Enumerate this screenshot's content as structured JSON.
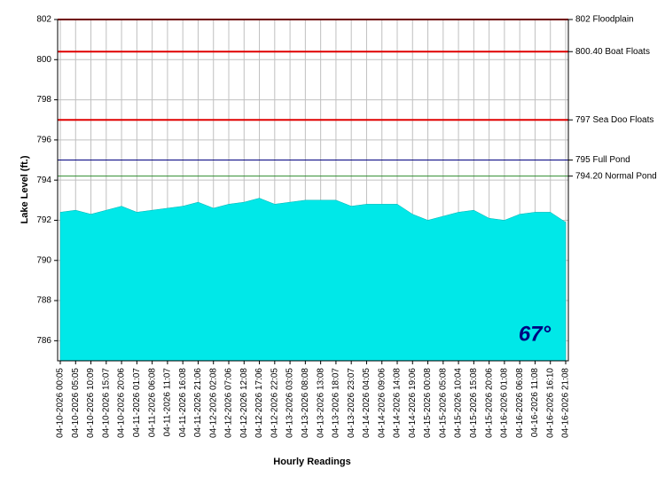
{
  "chart_data": {
    "type": "area",
    "y_label": "Lake Level (ft.)",
    "x_label": "Hourly Readings",
    "categories": [
      "04-10-2026 00:05",
      "04-10-2026 05:05",
      "04-10-2026 10:09",
      "04-10-2026 15:07",
      "04-10-2026 20:06",
      "04-11-2026 01:07",
      "04-11-2026 06:08",
      "04-11-2026 11:07",
      "04-11-2026 16:08",
      "04-11-2026 21:06",
      "04-12-2026 02:08",
      "04-12-2026 07:06",
      "04-12-2026 12:08",
      "04-12-2026 17:06",
      "04-12-2026 22:05",
      "04-13-2026 03:05",
      "04-13-2026 08:08",
      "04-13-2026 13:08",
      "04-13-2026 18:07",
      "04-13-2026 23:07",
      "04-14-2026 04:05",
      "04-14-2026 09:06",
      "04-14-2026 14:08",
      "04-14-2026 19:06",
      "04-15-2026 00:08",
      "04-15-2026 05:08",
      "04-15-2026 10:04",
      "04-15-2026 15:08",
      "04-15-2026 20:06",
      "04-16-2026 01:08",
      "04-16-2026 06:08",
      "04-16-2026 11:08",
      "04-16-2026 16:10",
      "04-16-2026 21:08"
    ],
    "values": [
      792.4,
      792.5,
      792.3,
      792.5,
      792.7,
      792.4,
      792.5,
      792.6,
      792.7,
      792.9,
      792.6,
      792.8,
      792.9,
      793.1,
      792.8,
      792.9,
      793.0,
      793.0,
      793.0,
      792.7,
      792.8,
      792.8,
      792.8,
      792.3,
      792.0,
      792.2,
      792.4,
      792.5,
      792.1,
      792.0,
      792.3,
      792.4,
      792.4,
      791.9
    ],
    "color": "#00e8e8",
    "ylim": [
      785,
      802
    ],
    "yticks": [
      786,
      788,
      790,
      792,
      794,
      796,
      798,
      800,
      802
    ],
    "grid": true,
    "reference_lines": [
      {
        "value": 802,
        "label": "802 Floodplain",
        "color": "#e00000"
      },
      {
        "value": 800.4,
        "label": "800.40 Boat Floats",
        "color": "#e00000"
      },
      {
        "value": 797,
        "label": "797 Sea Doo Floats",
        "color": "#e00000"
      },
      {
        "value": 795,
        "label": "795 Full Pond",
        "color": "#000080"
      },
      {
        "value": 794.2,
        "label": "794.20 Normal Pond",
        "color": "#2e8b2e"
      }
    ],
    "annotation": "67°"
  }
}
